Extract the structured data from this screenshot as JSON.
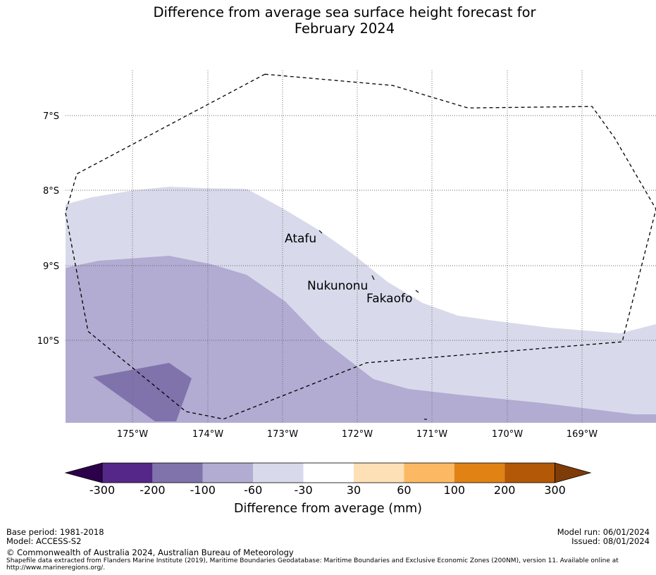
{
  "title": {
    "line1": "Difference from average sea surface height forecast for",
    "line2": "February 2024"
  },
  "map": {
    "lat_labels": [
      "7°S",
      "8°S",
      "9°S",
      "10°S"
    ],
    "lon_labels": [
      "175°W",
      "174°W",
      "173°W",
      "172°W",
      "171°W",
      "170°W",
      "169°W"
    ],
    "places": [
      {
        "name": "Atafu",
        "lon": -172.52,
        "lat": -8.56
      },
      {
        "name": "Nukunonu",
        "lon": -171.8,
        "lat": -9.17
      },
      {
        "name": "Fakaofo",
        "lon": -171.25,
        "lat": -9.38
      }
    ],
    "extent": {
      "lon_min": -175.9,
      "lon_max": -168.05,
      "lat_min": -11.1,
      "lat_max": -6.4
    },
    "eez_boundary_lonlat": [
      [
        -173.25,
        -6.45
      ],
      [
        -171.55,
        -6.6
      ],
      [
        -170.55,
        -6.9
      ],
      [
        -168.9,
        -6.88
      ],
      [
        -168.6,
        -7.3
      ],
      [
        -168.05,
        -8.25
      ],
      [
        -168.5,
        -10.02
      ],
      [
        -171.9,
        -10.3
      ],
      [
        -173.8,
        -11.05
      ],
      [
        -174.3,
        -10.95
      ],
      [
        -175.6,
        -9.88
      ],
      [
        -175.9,
        -8.3
      ],
      [
        -175.75,
        -7.78
      ],
      [
        -173.25,
        -6.45
      ]
    ]
  },
  "colorbar": {
    "ticks": [
      "-300",
      "-200",
      "-100",
      "-60",
      "-30",
      "30",
      "60",
      "100",
      "200",
      "300"
    ],
    "colors": [
      "#2d004b",
      "#542788",
      "#8073ac",
      "#b2abd2",
      "#d8daeb",
      "#ffffff",
      "#fee0b6",
      "#fdb863",
      "#e08214",
      "#b35806",
      "#7f3b08"
    ],
    "label": "Difference from average (mm)"
  },
  "footer": {
    "base_period": "Base period: 1981-2018",
    "model": "Model: ACCESS-S2",
    "copyright": "© Commonwealth of Australia 2024, Australian Bureau of Meteorology",
    "source_line1": "Shapefile data extracted from Flanders Marine Institute (2019), Maritime Boundaries Geodatabase: Maritime Boundaries and Exclusive Economic Zones (200NM), version 11. Available online at",
    "source_line2": "http://www.marineregions.org/.",
    "model_run": "Model run: 06/01/2024",
    "issued": "Issued: 08/01/2024"
  }
}
